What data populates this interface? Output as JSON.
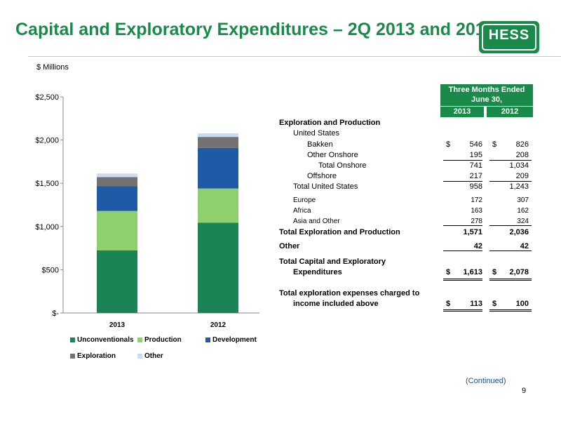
{
  "slide": {
    "title": "Capital and Exploratory Expenditures – 2Q 2013 and 2012",
    "logo_text": "HESS",
    "units_note": "$ Millions",
    "continued": "(Continued)",
    "page_number": "9",
    "accent_color": "#1a8a4a"
  },
  "chart_data": {
    "type": "bar",
    "stacked": true,
    "categories": [
      "2013",
      "2012"
    ],
    "series": [
      {
        "name": "Unconventionals",
        "color": "#1b8455",
        "values": [
          725,
          1045
        ]
      },
      {
        "name": "Production",
        "color": "#8ed06e",
        "values": [
          455,
          395
        ]
      },
      {
        "name": "Development",
        "color": "#1f5aa6",
        "values": [
          288,
          470
        ]
      },
      {
        "name": "Exploration",
        "color": "#727272",
        "values": [
          103,
          126
        ]
      },
      {
        "name": "Other",
        "color": "#c9dcf2",
        "values": [
          42,
          42
        ]
      }
    ],
    "yticks": [
      "$-",
      "$500",
      "$1,000",
      "$1,500",
      "$2,000",
      "$2,500"
    ],
    "ytick_values": [
      0,
      500,
      1000,
      1500,
      2000,
      2500
    ],
    "ylim": [
      0,
      2500
    ],
    "legend": "bottom"
  },
  "table": {
    "header_line1": "Three  Months Ended",
    "header_line2": "June 30,",
    "col1": "2013",
    "col2": "2012",
    "rows": [
      {
        "label": "Exploration and Production",
        "v1": "",
        "v2": ""
      },
      {
        "label": "United States",
        "v1": "",
        "v2": ""
      },
      {
        "label": "Bakken",
        "d1": "$",
        "v1": "546",
        "d2": "$",
        "v2": "826"
      },
      {
        "label": "Other Onshore",
        "v1": "195",
        "v2": "208"
      },
      {
        "label": "Total Onshore",
        "v1": "741",
        "v2": "1,034"
      },
      {
        "label": "Offshore",
        "v1": "217",
        "v2": "209"
      },
      {
        "label": "Total United States",
        "v1": "958",
        "v2": "1,243"
      },
      {
        "label": "Europe",
        "v1": "172",
        "v2": "307"
      },
      {
        "label": "Africa",
        "v1": "163",
        "v2": "162"
      },
      {
        "label": "Asia and Other",
        "v1": "278",
        "v2": "324"
      },
      {
        "label": "Total Exploration and Production",
        "v1": "1,571",
        "v2": "2,036"
      },
      {
        "label": "Other",
        "v1": "42",
        "v2": "42"
      },
      {
        "label": "Total Capital and Exploratory",
        "v1": "",
        "v2": ""
      },
      {
        "label": "Expenditures",
        "d1": "$",
        "v1": "1,613",
        "d2": "$",
        "v2": "2,078"
      },
      {
        "label": "Total exploration expenses charged to",
        "v1": "",
        "v2": ""
      },
      {
        "label": "income included above",
        "d1": "$",
        "v1": "113",
        "d2": "$",
        "v2": "100"
      }
    ]
  }
}
